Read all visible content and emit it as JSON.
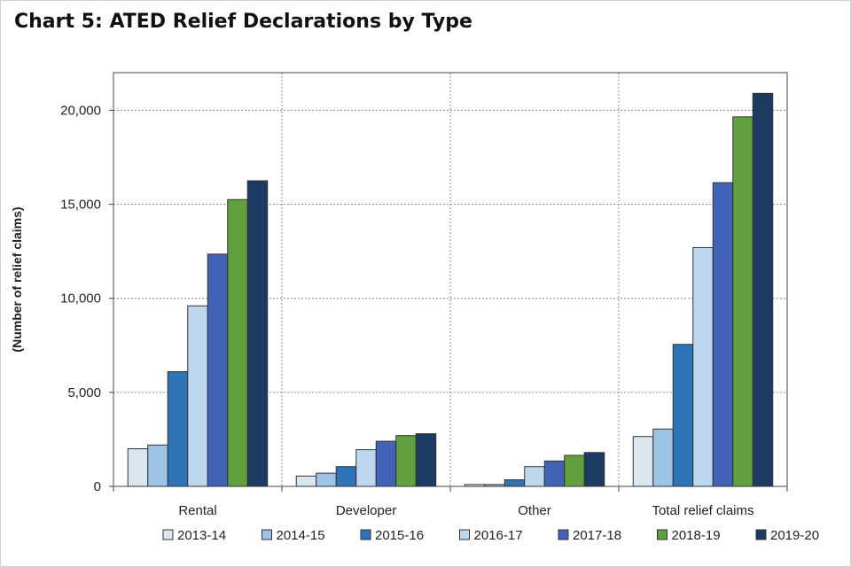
{
  "chart_data": {
    "type": "bar",
    "title": "Chart 5: ATED Relief Declarations by Type",
    "ylabel": "(Number of relief claims)",
    "xlabel": "",
    "categories": [
      "Rental",
      "Developer",
      "Other",
      "Total relief claims"
    ],
    "ylim": [
      0,
      22000
    ],
    "yticks": [
      0,
      5000,
      10000,
      15000,
      20000
    ],
    "ytick_labels": [
      "0",
      "5,000",
      "10,000",
      "15,000",
      "20,000"
    ],
    "grid": true,
    "legend_position": "bottom",
    "series": [
      {
        "name": "2013-14",
        "color": "#dce6f1",
        "values": [
          2000,
          550,
          100,
          2650
        ]
      },
      {
        "name": "2014-15",
        "color": "#9dc3e6",
        "values": [
          2200,
          700,
          100,
          3050
        ]
      },
      {
        "name": "2015-16",
        "color": "#2e75b6",
        "values": [
          6100,
          1050,
          350,
          7550
        ]
      },
      {
        "name": "2016-17",
        "color": "#bdd7ee",
        "values": [
          9600,
          1950,
          1050,
          12700
        ]
      },
      {
        "name": "2017-18",
        "color": "#4263b5",
        "values": [
          12350,
          2400,
          1350,
          16150
        ]
      },
      {
        "name": "2018-19",
        "color": "#62a03e",
        "values": [
          15250,
          2700,
          1650,
          19650
        ]
      },
      {
        "name": "2019-20",
        "color": "#1b3b62",
        "values": [
          16250,
          2800,
          1800,
          20900
        ]
      }
    ]
  }
}
